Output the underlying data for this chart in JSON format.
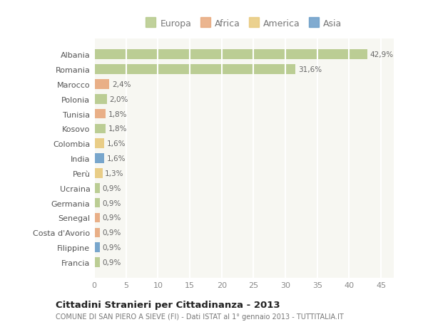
{
  "countries": [
    "Albania",
    "Romania",
    "Marocco",
    "Polonia",
    "Tunisia",
    "Kosovo",
    "Colombia",
    "India",
    "Perù",
    "Ucraina",
    "Germania",
    "Senegal",
    "Costa d'Avorio",
    "Filippine",
    "Francia"
  ],
  "values": [
    42.9,
    31.6,
    2.4,
    2.0,
    1.8,
    1.8,
    1.6,
    1.6,
    1.3,
    0.9,
    0.9,
    0.9,
    0.9,
    0.9,
    0.9
  ],
  "labels": [
    "42,9%",
    "31,6%",
    "2,4%",
    "2,0%",
    "1,8%",
    "1,8%",
    "1,6%",
    "1,6%",
    "1,3%",
    "0,9%",
    "0,9%",
    "0,9%",
    "0,9%",
    "0,9%",
    "0,9%"
  ],
  "colors": [
    "#b5c98a",
    "#b5c98a",
    "#e8a87c",
    "#b5c98a",
    "#e8a87c",
    "#b5c98a",
    "#e8c97c",
    "#6a9dc8",
    "#e8c97c",
    "#b5c98a",
    "#b5c98a",
    "#e8a87c",
    "#e8a87c",
    "#6a9dc8",
    "#b5c98a"
  ],
  "legend_labels": [
    "Europa",
    "Africa",
    "America",
    "Asia"
  ],
  "legend_colors": [
    "#b5c98a",
    "#e8a87c",
    "#e8c97c",
    "#6a9dc8"
  ],
  "title": "Cittadini Stranieri per Cittadinanza - 2013",
  "subtitle": "COMUNE DI SAN PIERO A SIEVE (FI) - Dati ISTAT al 1° gennaio 2013 - TUTTITALIA.IT",
  "xlim": [
    0,
    47
  ],
  "xticks": [
    0,
    5,
    10,
    15,
    20,
    25,
    30,
    35,
    40,
    45
  ],
  "bg_color": "#ffffff",
  "plot_bg_color": "#f7f7f2",
  "grid_color": "#ffffff"
}
